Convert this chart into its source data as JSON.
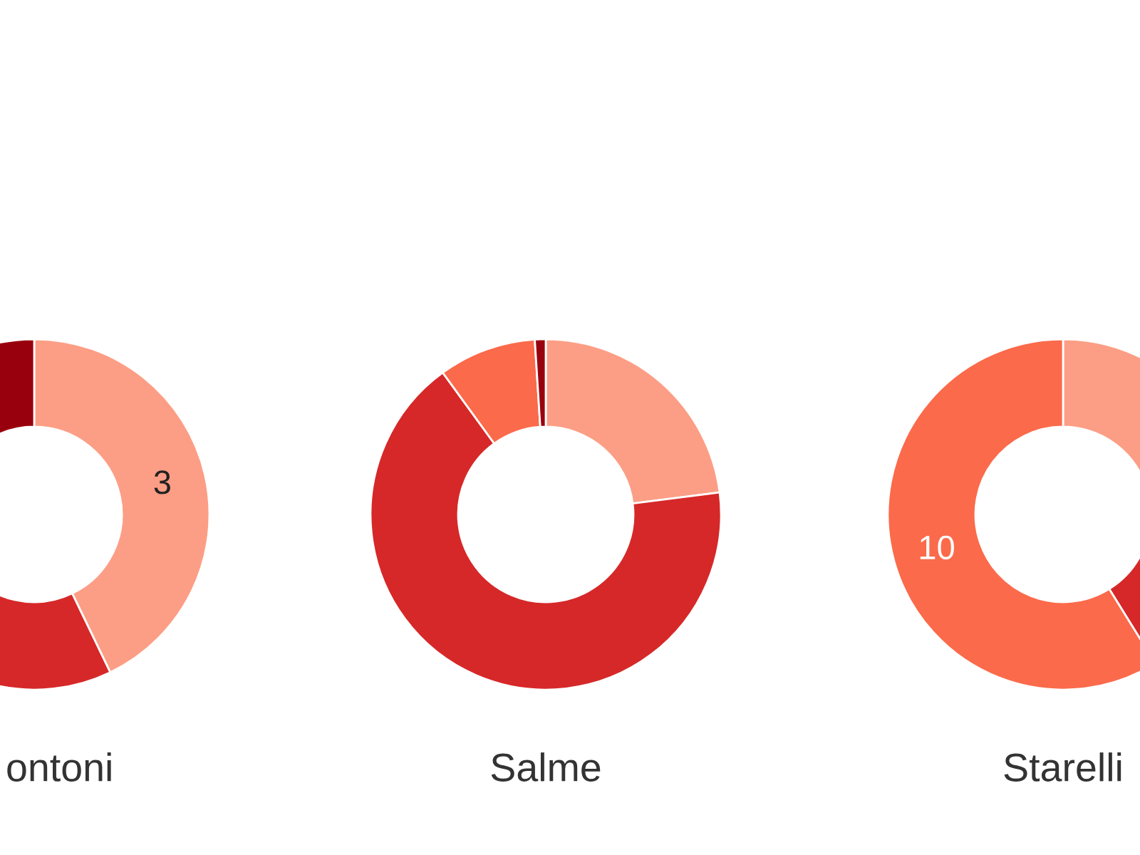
{
  "chart_data": [
    {
      "type": "donut",
      "title": "ontoni",
      "categories": [
        null,
        null,
        null
      ],
      "values": [
        3,
        3,
        1
      ],
      "colors": [
        "#fc9e85",
        "#d62828",
        "#99000d"
      ],
      "value_labels": [
        "3",
        null,
        null
      ]
    },
    {
      "type": "donut",
      "title": "Salme",
      "categories": [
        null,
        null,
        null,
        null
      ],
      "values": [
        23,
        67,
        9,
        1
      ],
      "colors": [
        "#fc9e85",
        "#d62828",
        "#fb6a4a",
        "#99000d"
      ]
    },
    {
      "type": "donut",
      "title": "Starelli",
      "categories": [
        null,
        null,
        null
      ],
      "values": [
        4,
        3,
        10
      ],
      "colors": [
        "#fc9e85",
        "#d62828",
        "#fb6a4a"
      ],
      "value_labels": [
        null,
        null,
        "10"
      ]
    }
  ]
}
